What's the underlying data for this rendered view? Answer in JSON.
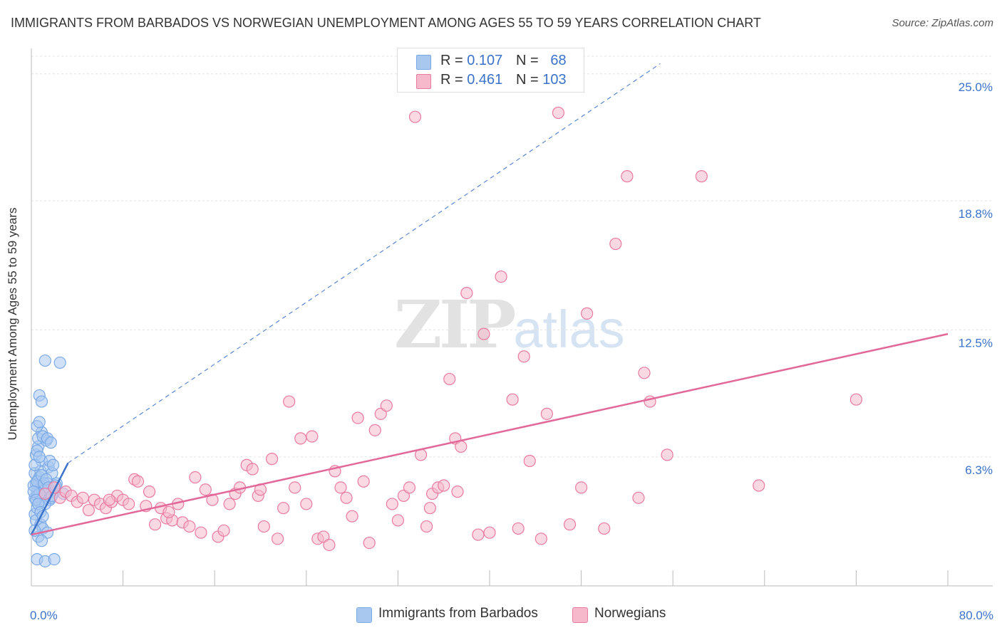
{
  "title": "IMMIGRANTS FROM BARBADOS VS NORWEGIAN UNEMPLOYMENT AMONG AGES 55 TO 59 YEARS CORRELATION CHART",
  "source": "Source: ZipAtlas.com",
  "watermark": {
    "zip": "ZIP",
    "atlas": "atlas"
  },
  "legend_top": {
    "rows": [
      {
        "r_label": "R = ",
        "r_value": "0.107",
        "n_label": "N = ",
        "n_value": "68",
        "color": "#a9c8f0"
      },
      {
        "r_label": "R = ",
        "r_value": "0.461",
        "n_label": "N = ",
        "n_value": "103",
        "color": "#f6b9cc"
      }
    ]
  },
  "legend_bottom": [
    {
      "label": "Immigrants from Barbados",
      "color": "#a9c8f0"
    },
    {
      "label": "Norwegians",
      "color": "#f6b9cc"
    }
  ],
  "chart_data": {
    "type": "scatter",
    "title": "IMMIGRANTS FROM BARBADOS VS NORWEGIAN UNEMPLOYMENT AMONG AGES 55 TO 59 YEARS CORRELATION CHART",
    "xlabel": "",
    "ylabel": "Unemployment Among Ages 55 to 59 years",
    "xlim": [
      0,
      80
    ],
    "ylim": [
      0,
      26
    ],
    "x_tick_labels": [
      {
        "value": 0,
        "label": "0.0%"
      },
      {
        "value": 80,
        "label": "80.0%"
      }
    ],
    "y_tick_labels": [
      {
        "value": 6.3,
        "label": "6.3%"
      },
      {
        "value": 12.5,
        "label": "12.5%"
      },
      {
        "value": 18.8,
        "label": "18.8%"
      },
      {
        "value": 25.0,
        "label": "25.0%"
      }
    ],
    "grid": true,
    "series": [
      {
        "name": "Immigrants from Barbados",
        "color": "#7aa9e6",
        "fill": "#a9c8f0",
        "trend": {
          "x": [
            0,
            3.2
          ],
          "y": [
            2.5,
            6.0
          ],
          "dashed_extension_to": [
            54.9,
            25.5
          ],
          "color": "#3a73c9"
        },
        "points": [
          [
            0.3,
            4.3
          ],
          [
            0.5,
            4.6
          ],
          [
            0.4,
            5.0
          ],
          [
            0.6,
            5.2
          ],
          [
            0.3,
            5.5
          ],
          [
            0.8,
            4.8
          ],
          [
            0.5,
            4.4
          ],
          [
            1.0,
            4.9
          ],
          [
            0.7,
            5.3
          ],
          [
            1.2,
            4.7
          ],
          [
            0.4,
            6.4
          ],
          [
            0.6,
            6.8
          ],
          [
            0.9,
            6.1
          ],
          [
            0.3,
            3.5
          ],
          [
            0.5,
            3.8
          ],
          [
            0.7,
            4.1
          ],
          [
            1.1,
            4.5
          ],
          [
            1.4,
            5.0
          ],
          [
            0.8,
            5.6
          ],
          [
            0.2,
            4.9
          ],
          [
            0.6,
            7.2
          ],
          [
            0.9,
            7.5
          ],
          [
            1.3,
            7.1
          ],
          [
            0.5,
            7.8
          ],
          [
            0.7,
            8.0
          ],
          [
            1.5,
            5.8
          ],
          [
            1.8,
            5.5
          ],
          [
            2.0,
            4.6
          ],
          [
            1.6,
            4.2
          ],
          [
            1.2,
            4.0
          ],
          [
            0.4,
            3.2
          ],
          [
            0.8,
            3.0
          ],
          [
            1.0,
            2.8
          ],
          [
            0.6,
            2.4
          ],
          [
            1.4,
            2.6
          ],
          [
            0.5,
            1.3
          ],
          [
            1.2,
            1.2
          ],
          [
            2.0,
            1.3
          ],
          [
            1.2,
            11.0
          ],
          [
            2.5,
            10.9
          ],
          [
            0.7,
            9.3
          ],
          [
            0.9,
            9.0
          ],
          [
            0.3,
            5.9
          ],
          [
            0.5,
            5.1
          ],
          [
            0.7,
            4.5
          ],
          [
            0.9,
            5.4
          ],
          [
            1.1,
            5.0
          ],
          [
            1.3,
            5.2
          ],
          [
            1.5,
            4.8
          ],
          [
            1.7,
            4.3
          ],
          [
            0.2,
            4.6
          ],
          [
            0.4,
            4.2
          ],
          [
            0.6,
            4.0
          ],
          [
            0.8,
            3.6
          ],
          [
            1.0,
            3.4
          ],
          [
            0.3,
            2.7
          ],
          [
            1.6,
            6.1
          ],
          [
            1.9,
            5.9
          ],
          [
            2.2,
            5.0
          ],
          [
            2.8,
            4.5
          ],
          [
            0.5,
            6.6
          ],
          [
            0.7,
            6.3
          ],
          [
            1.0,
            7.3
          ],
          [
            1.4,
            7.2
          ],
          [
            1.7,
            7.0
          ],
          [
            2.1,
            4.9
          ],
          [
            1.8,
            4.4
          ],
          [
            0.9,
            2.2
          ]
        ]
      },
      {
        "name": "Norwegians",
        "color": "#e97aa0",
        "fill": "#f6b9cc",
        "trend": {
          "x": [
            0,
            80
          ],
          "y": [
            2.5,
            12.3
          ],
          "color": "#e2689a"
        },
        "points": [
          [
            1.2,
            4.5
          ],
          [
            2.0,
            4.8
          ],
          [
            2.5,
            4.3
          ],
          [
            3.0,
            4.6
          ],
          [
            3.5,
            4.4
          ],
          [
            4.0,
            4.1
          ],
          [
            4.5,
            4.3
          ],
          [
            5.0,
            3.7
          ],
          [
            5.5,
            4.2
          ],
          [
            6.0,
            4.0
          ],
          [
            6.5,
            3.8
          ],
          [
            7.0,
            4.1
          ],
          [
            7.5,
            4.4
          ],
          [
            8.0,
            4.2
          ],
          [
            8.5,
            4.0
          ],
          [
            9.0,
            5.2
          ],
          [
            9.3,
            5.1
          ],
          [
            10.0,
            3.9
          ],
          [
            10.3,
            4.6
          ],
          [
            10.8,
            3.0
          ],
          [
            11.3,
            3.8
          ],
          [
            11.8,
            3.3
          ],
          [
            12.3,
            3.2
          ],
          [
            12.8,
            4.0
          ],
          [
            13.2,
            3.1
          ],
          [
            13.8,
            2.9
          ],
          [
            14.3,
            5.3
          ],
          [
            14.8,
            2.6
          ],
          [
            15.2,
            4.7
          ],
          [
            15.8,
            4.2
          ],
          [
            16.3,
            2.4
          ],
          [
            16.8,
            2.7
          ],
          [
            17.3,
            4.0
          ],
          [
            17.8,
            4.5
          ],
          [
            18.2,
            4.8
          ],
          [
            18.8,
            5.9
          ],
          [
            19.3,
            5.7
          ],
          [
            19.8,
            4.4
          ],
          [
            20.3,
            2.9
          ],
          [
            21.0,
            6.2
          ],
          [
            21.5,
            2.3
          ],
          [
            22.0,
            3.8
          ],
          [
            22.5,
            9.0
          ],
          [
            23.0,
            4.8
          ],
          [
            23.5,
            7.2
          ],
          [
            24.0,
            4.0
          ],
          [
            24.5,
            7.3
          ],
          [
            25.0,
            2.3
          ],
          [
            25.5,
            2.4
          ],
          [
            26.0,
            2.0
          ],
          [
            26.5,
            5.6
          ],
          [
            27.0,
            4.8
          ],
          [
            27.5,
            4.3
          ],
          [
            28.0,
            3.4
          ],
          [
            28.5,
            8.2
          ],
          [
            29.0,
            5.1
          ],
          [
            29.5,
            2.1
          ],
          [
            30.0,
            7.6
          ],
          [
            30.5,
            8.4
          ],
          [
            31.0,
            8.8
          ],
          [
            31.5,
            4.0
          ],
          [
            32.0,
            3.2
          ],
          [
            32.5,
            4.4
          ],
          [
            33.0,
            4.8
          ],
          [
            33.5,
            22.9
          ],
          [
            34.0,
            6.4
          ],
          [
            34.5,
            2.9
          ],
          [
            35.0,
            4.5
          ],
          [
            35.5,
            4.8
          ],
          [
            36.0,
            4.9
          ],
          [
            36.5,
            10.1
          ],
          [
            37.0,
            7.2
          ],
          [
            37.5,
            6.8
          ],
          [
            38.0,
            14.3
          ],
          [
            39.0,
            2.5
          ],
          [
            39.5,
            12.3
          ],
          [
            40.0,
            2.6
          ],
          [
            41.0,
            15.1
          ],
          [
            42.0,
            9.1
          ],
          [
            42.5,
            2.8
          ],
          [
            43.0,
            11.2
          ],
          [
            43.5,
            6.1
          ],
          [
            44.5,
            2.3
          ],
          [
            45.0,
            8.4
          ],
          [
            46.0,
            23.1
          ],
          [
            47.0,
            3.0
          ],
          [
            48.0,
            4.8
          ],
          [
            48.5,
            13.3
          ],
          [
            50.0,
            2.8
          ],
          [
            51.0,
            16.7
          ],
          [
            52.0,
            20.0
          ],
          [
            53.0,
            4.3
          ],
          [
            53.5,
            10.4
          ],
          [
            54.0,
            9.0
          ],
          [
            55.5,
            6.4
          ],
          [
            58.5,
            20.0
          ],
          [
            63.5,
            4.9
          ],
          [
            72.0,
            9.1
          ],
          [
            37.2,
            4.6
          ],
          [
            34.8,
            3.8
          ],
          [
            20.0,
            4.7
          ],
          [
            12.0,
            3.6
          ],
          [
            6.8,
            4.2
          ]
        ]
      }
    ]
  }
}
